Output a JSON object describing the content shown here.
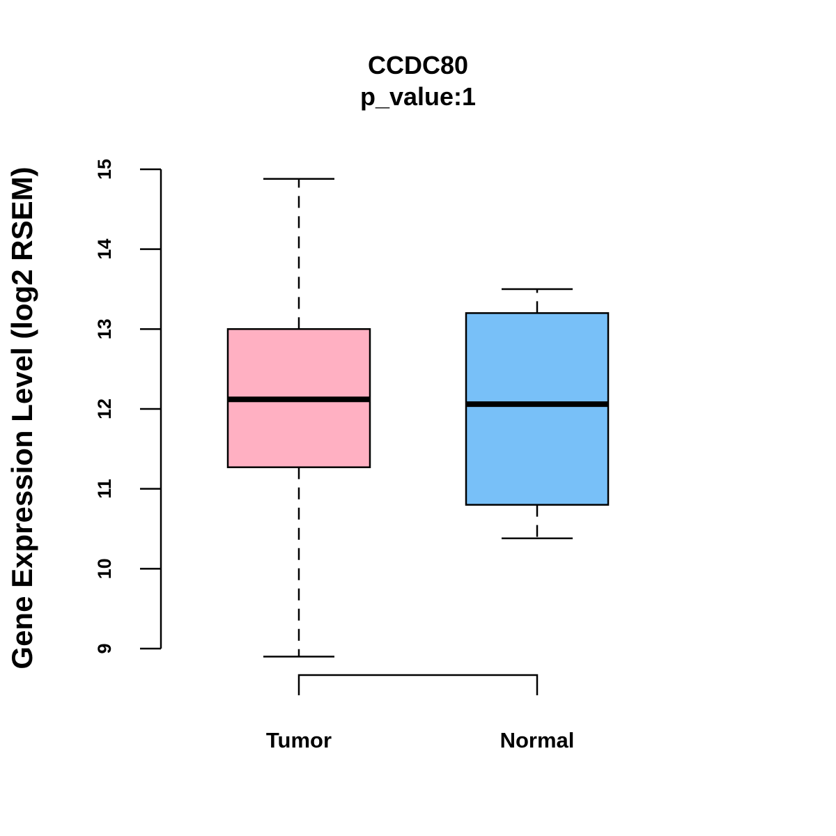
{
  "chart_data": {
    "type": "box",
    "title": "CCDC80",
    "subtitle": "p_value:1",
    "ylabel": "Gene Expression Level (log2 RSEM)",
    "xlabel": "",
    "ylim": [
      9,
      15
    ],
    "yticks": [
      "9",
      "10",
      "11",
      "12",
      "13",
      "14",
      "15"
    ],
    "categories": [
      "Tumor",
      "Normal"
    ],
    "boxes": [
      {
        "category": "Tumor",
        "whisker_low": 8.9,
        "q1": 11.27,
        "median": 12.12,
        "q3": 13.0,
        "whisker_high": 14.88,
        "color": "#FFB0C2"
      },
      {
        "category": "Normal",
        "whisker_low": 10.38,
        "q1": 10.8,
        "median": 12.06,
        "q3": 13.2,
        "whisker_high": 13.5,
        "color": "#78C0F8"
      }
    ],
    "grid": false,
    "legend": "none"
  }
}
